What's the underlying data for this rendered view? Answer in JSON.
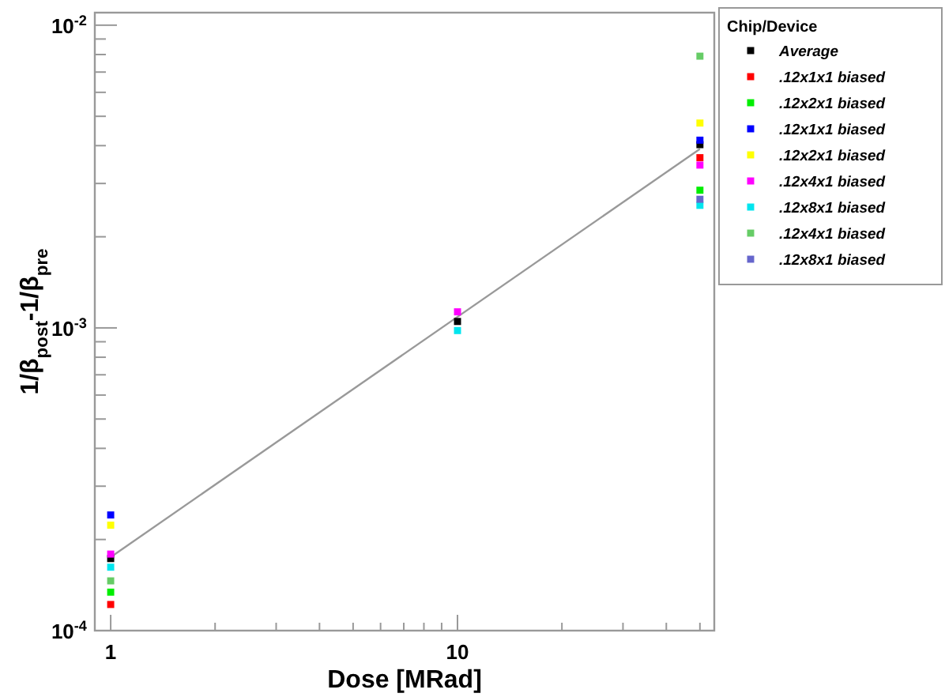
{
  "chart_data": {
    "type": "scatter",
    "xlabel": "Dose [MRad]",
    "ylabel": "1/β$_{post}$-1/β$_{pre}$",
    "legend_title": "Chip/Device",
    "log": "xy",
    "grid": false,
    "legend": "right",
    "marker": "square",
    "xlim": [
      0.9,
      55
    ],
    "ylim": [
      0.0001,
      0.011
    ],
    "xticks": [
      1,
      {
        "value": 2,
        "label": null
      },
      {
        "value": 3,
        "label": null
      },
      {
        "value": 4,
        "label": null
      },
      {
        "value": 5,
        "label": null
      },
      {
        "value": 6,
        "label": null
      },
      {
        "value": 7,
        "label": null
      },
      {
        "value": 8,
        "label": null
      },
      {
        "value": 9,
        "label": null
      },
      10,
      {
        "value": 20,
        "label": null
      },
      {
        "value": 30,
        "label": null
      },
      {
        "value": 40,
        "label": null
      },
      {
        "value": 50,
        "label": null
      }
    ],
    "yticks": [
      {
        "value": 0.0001,
        "label": "10$^{-4}$"
      },
      {
        "value": 0.0002,
        "label": null
      },
      {
        "value": 0.0003,
        "label": null
      },
      {
        "value": 0.0004,
        "label": null
      },
      {
        "value": 0.0005,
        "label": null
      },
      {
        "value": 0.0006,
        "label": null
      },
      {
        "value": 0.0007,
        "label": null
      },
      {
        "value": 0.0008,
        "label": null
      },
      {
        "value": 0.0009,
        "label": null
      },
      {
        "value": 0.001,
        "label": "10$^{-3}$"
      },
      {
        "value": 0.002,
        "label": null
      },
      {
        "value": 0.003,
        "label": null
      },
      {
        "value": 0.004,
        "label": null
      },
      {
        "value": 0.005,
        "label": null
      },
      {
        "value": 0.006,
        "label": null
      },
      {
        "value": 0.007,
        "label": null
      },
      {
        "value": 0.008,
        "label": null
      },
      {
        "value": 0.009,
        "label": null
      },
      {
        "value": 0.01,
        "label": "10$^{-2}$"
      }
    ],
    "series": [
      {
        "type": "line",
        "color": "#999999",
        "x": [
          1,
          50
        ],
        "values": [
          0.000175,
          0.0039
        ],
        "marker": "none"
      },
      {
        "name": "Average",
        "color": "#000000",
        "x": [
          1,
          10,
          50
        ],
        "values": [
          0.000173,
          0.00105,
          0.00403
        ]
      },
      {
        "name": ".12x1x1 biased",
        "color": "#ff0000",
        "x": [
          1,
          50
        ],
        "values": [
          0.000122,
          0.00365
        ]
      },
      {
        "name": ".12x2x1 biased",
        "color": "#00ee00",
        "x": [
          1,
          50
        ],
        "values": [
          0.000134,
          0.00285
        ]
      },
      {
        "name": ".12x1x1 biased",
        "color": "#0000ff",
        "x": [
          1,
          50
        ],
        "values": [
          0.000241,
          0.00417
        ]
      },
      {
        "name": ".12x2x1 biased",
        "color": "#ffff00",
        "x": [
          1,
          50
        ],
        "values": [
          0.000223,
          0.00475
        ]
      },
      {
        "name": ".12x4x1 biased",
        "color": "#ff00ff",
        "x": [
          1,
          10,
          50
        ],
        "values": [
          0.000179,
          0.00113,
          0.00345
        ]
      },
      {
        "name": ".12x8x1 biased",
        "color": "#00e5ee",
        "x": [
          1,
          10,
          50
        ],
        "values": [
          0.000162,
          0.00098,
          0.00254
        ]
      },
      {
        "name": ".12x4x1 biased",
        "color": "#66cc66",
        "x": [
          1,
          50
        ],
        "values": [
          0.000146,
          0.0079
        ]
      },
      {
        "name": ".12x8x1 biased",
        "color": "#6666cc",
        "x": [
          50
        ],
        "values": [
          0.00266
        ]
      }
    ]
  }
}
